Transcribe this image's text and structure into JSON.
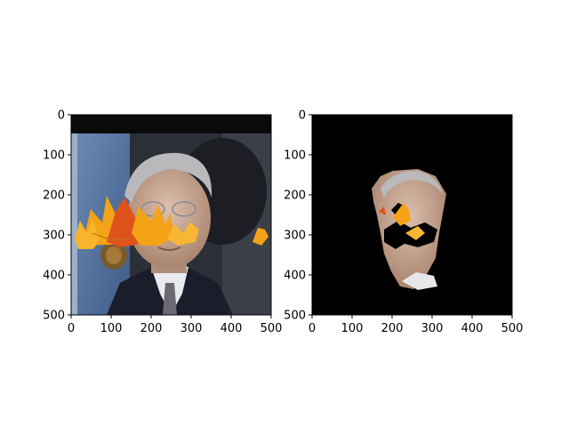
{
  "chart_data": [
    {
      "type": "image",
      "title": "",
      "xlabel": "",
      "ylabel": "",
      "xlim": [
        0,
        500
      ],
      "ylim": [
        500,
        0
      ],
      "xticks": [
        0,
        100,
        200,
        300,
        400,
        500
      ],
      "yticks": [
        0,
        100,
        200,
        300,
        400,
        500
      ],
      "content": "photo of a man in suit with autumn maple-leaf overlay"
    },
    {
      "type": "image",
      "title": "",
      "xlabel": "",
      "ylabel": "",
      "xlim": [
        0,
        500
      ],
      "ylim": [
        500,
        0
      ],
      "xticks": [
        0,
        100,
        200,
        300,
        400,
        500
      ],
      "yticks": [
        0,
        100,
        200,
        300,
        400,
        500
      ],
      "content": "segmentation mask showing face region on black background"
    }
  ],
  "colors": {
    "frame": "#000000",
    "mask_background": "#000000",
    "leaf_orange": "#f5a316",
    "leaf_red": "#e0521b",
    "skin": "#c8a28e",
    "suit": "#1b1d2b",
    "wall_blue": "#5a7fb0"
  }
}
